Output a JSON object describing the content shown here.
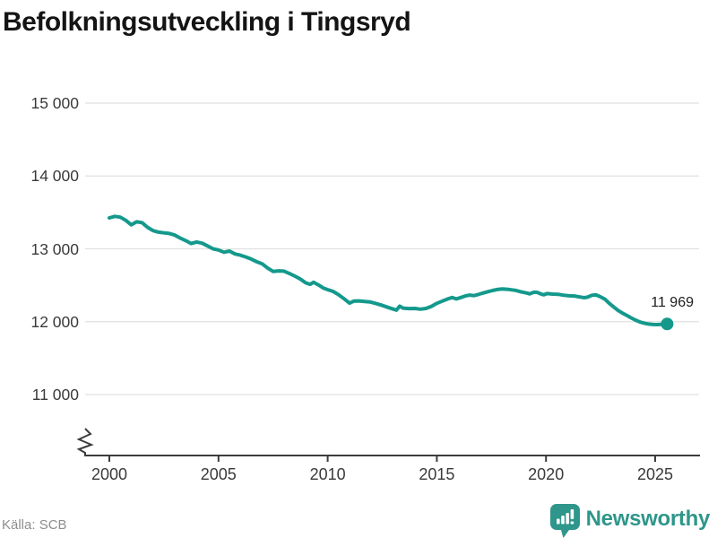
{
  "title": "Befolkningsutveckling i Tingsryd",
  "source": "Källa: SCB",
  "branding": {
    "logo_text": "Newsworthy",
    "logo_icon": "speech-bubble-bar-chart-icon"
  },
  "colors": {
    "line": "#14998c",
    "end_dot": "#14998c",
    "grid": "#e0e0e0",
    "axis": "#3c3c3c",
    "title_text": "#141414",
    "tick_text": "#3a3a3a",
    "source_text": "#8e8e8e",
    "brand_teal": "#2e968a"
  },
  "chart_data": {
    "type": "line",
    "title": "Befolkningsutveckling i Tingsryd",
    "xlabel": "",
    "ylabel": "",
    "legend": "none",
    "grid": "horizontal",
    "x_axis": {
      "ticks": [
        2000,
        2005,
        2010,
        2015,
        2020,
        2025
      ],
      "tick_labels": [
        "2000",
        "2005",
        "2010",
        "2015",
        "2020",
        "2025"
      ],
      "broken_axis_marker": true
    },
    "y_axis": {
      "ticks": [
        11000,
        12000,
        13000,
        14000,
        15000
      ],
      "tick_labels": [
        "11 000",
        "12 000",
        "13 000",
        "14 000",
        "15 000"
      ],
      "visible_range": [
        11000,
        15000
      ]
    },
    "end_point": {
      "x": 2025.55,
      "y": 11969,
      "label": "11 969"
    },
    "series": [
      {
        "name": "Befolkning",
        "points": [
          [
            2000.0,
            13425
          ],
          [
            2000.25,
            13446
          ],
          [
            2000.5,
            13435
          ],
          [
            2000.75,
            13392
          ],
          [
            2001.0,
            13330
          ],
          [
            2001.25,
            13371
          ],
          [
            2001.5,
            13360
          ],
          [
            2001.75,
            13295
          ],
          [
            2002.0,
            13250
          ],
          [
            2002.25,
            13229
          ],
          [
            2002.5,
            13219
          ],
          [
            2002.75,
            13210
          ],
          [
            2003.0,
            13188
          ],
          [
            2003.25,
            13146
          ],
          [
            2003.5,
            13112
          ],
          [
            2003.75,
            13073
          ],
          [
            2004.0,
            13094
          ],
          [
            2004.25,
            13077
          ],
          [
            2004.5,
            13040
          ],
          [
            2004.75,
            13000
          ],
          [
            2005.0,
            12984
          ],
          [
            2005.25,
            12953
          ],
          [
            2005.5,
            12969
          ],
          [
            2005.75,
            12930
          ],
          [
            2006.0,
            12913
          ],
          [
            2006.25,
            12888
          ],
          [
            2006.5,
            12860
          ],
          [
            2006.75,
            12823
          ],
          [
            2007.0,
            12795
          ],
          [
            2007.25,
            12737
          ],
          [
            2007.5,
            12690
          ],
          [
            2007.75,
            12697
          ],
          [
            2008.0,
            12694
          ],
          [
            2008.25,
            12660
          ],
          [
            2008.5,
            12625
          ],
          [
            2008.75,
            12585
          ],
          [
            2009.0,
            12532
          ],
          [
            2009.2,
            12512
          ],
          [
            2009.35,
            12541
          ],
          [
            2009.6,
            12500
          ],
          [
            2009.8,
            12462
          ],
          [
            2010.0,
            12440
          ],
          [
            2010.25,
            12415
          ],
          [
            2010.5,
            12370
          ],
          [
            2010.75,
            12315
          ],
          [
            2011.0,
            12254
          ],
          [
            2011.2,
            12283
          ],
          [
            2011.45,
            12285
          ],
          [
            2011.7,
            12278
          ],
          [
            2011.95,
            12270
          ],
          [
            2012.2,
            12250
          ],
          [
            2012.45,
            12228
          ],
          [
            2012.7,
            12203
          ],
          [
            2012.95,
            12178
          ],
          [
            2013.15,
            12158
          ],
          [
            2013.3,
            12213
          ],
          [
            2013.45,
            12186
          ],
          [
            2013.7,
            12180
          ],
          [
            2014.0,
            12182
          ],
          [
            2014.25,
            12172
          ],
          [
            2014.5,
            12182
          ],
          [
            2014.75,
            12210
          ],
          [
            2015.0,
            12252
          ],
          [
            2015.25,
            12283
          ],
          [
            2015.5,
            12312
          ],
          [
            2015.7,
            12332
          ],
          [
            2015.9,
            12312
          ],
          [
            2016.1,
            12332
          ],
          [
            2016.3,
            12353
          ],
          [
            2016.5,
            12365
          ],
          [
            2016.7,
            12358
          ],
          [
            2016.9,
            12373
          ],
          [
            2017.1,
            12392
          ],
          [
            2017.3,
            12408
          ],
          [
            2017.55,
            12428
          ],
          [
            2017.8,
            12444
          ],
          [
            2018.0,
            12450
          ],
          [
            2018.3,
            12443
          ],
          [
            2018.6,
            12430
          ],
          [
            2018.85,
            12410
          ],
          [
            2019.1,
            12394
          ],
          [
            2019.25,
            12382
          ],
          [
            2019.45,
            12404
          ],
          [
            2019.6,
            12402
          ],
          [
            2019.75,
            12382
          ],
          [
            2019.9,
            12369
          ],
          [
            2020.05,
            12386
          ],
          [
            2020.3,
            12378
          ],
          [
            2020.55,
            12376
          ],
          [
            2020.8,
            12364
          ],
          [
            2021.05,
            12355
          ],
          [
            2021.3,
            12353
          ],
          [
            2021.55,
            12339
          ],
          [
            2021.75,
            12329
          ],
          [
            2021.9,
            12337
          ],
          [
            2022.1,
            12362
          ],
          [
            2022.3,
            12368
          ],
          [
            2022.5,
            12340
          ],
          [
            2022.7,
            12308
          ],
          [
            2022.9,
            12252
          ],
          [
            2023.1,
            12202
          ],
          [
            2023.3,
            12155
          ],
          [
            2023.5,
            12118
          ],
          [
            2023.7,
            12086
          ],
          [
            2023.9,
            12052
          ],
          [
            2024.1,
            12022
          ],
          [
            2024.3,
            11996
          ],
          [
            2024.5,
            11980
          ],
          [
            2024.7,
            11968
          ],
          [
            2024.9,
            11961
          ],
          [
            2025.1,
            11960
          ],
          [
            2025.3,
            11964
          ],
          [
            2025.55,
            11969
          ]
        ]
      }
    ]
  }
}
